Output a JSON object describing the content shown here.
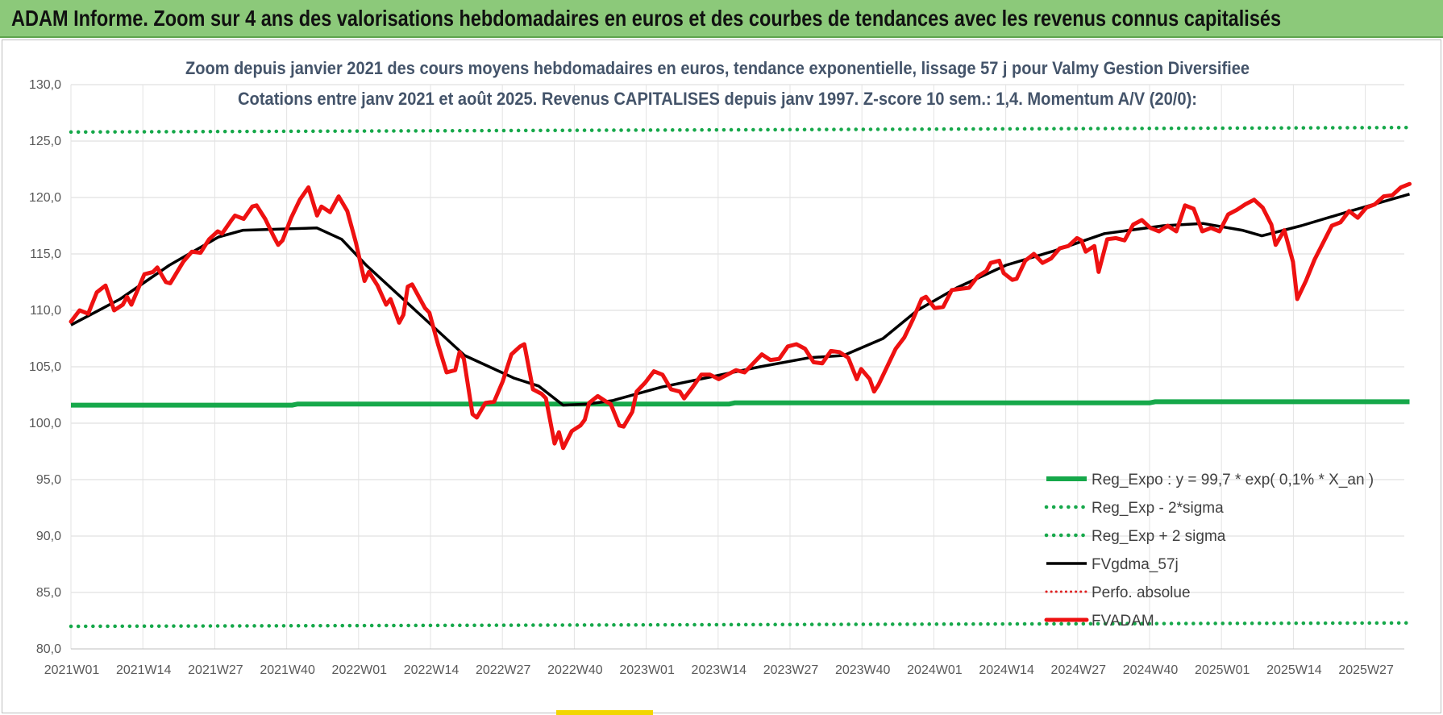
{
  "banner": {
    "title": "ADAM Informe. Zoom sur 4 ans des valorisations hebdomadaires en euros et des courbes de tendances avec les revenus connus capitalisés"
  },
  "colors": {
    "banner_bg": "#8cc97a",
    "regression": "#16a84a",
    "bands": "#16a84a",
    "moving_average": "#000000",
    "price": "#ee1111",
    "perfo": "#e02020"
  },
  "chart_data": {
    "type": "line",
    "title": "Zoom depuis janvier 2021 des cours moyens hebdomadaires en euros, tendance exponentielle, lissage 57 j pour Valmy Gestion Diversifiee",
    "subtitle": "Cotations entre janv 2021 et août 2025. Revenus CAPITALISES depuis janv 1997. Z-score 10 sem.: 1,4. Momentum A/V (20/0):",
    "x_tick_labels": [
      "2021W01",
      "2021W14",
      "2021W27",
      "2021W40",
      "2022W01",
      "2022W14",
      "2022W27",
      "2022W40",
      "2023W01",
      "2023W14",
      "2023W27",
      "2023W40",
      "2024W01",
      "2024W14",
      "2024W27",
      "2024W40",
      "2025W01",
      "2025W14",
      "2025W27"
    ],
    "y_tick_labels": [
      "80,0",
      "85,0",
      "90,0",
      "95,0",
      "100,0",
      "105,0",
      "110,0",
      "115,0",
      "120,0",
      "125,0",
      "130,0"
    ],
    "ylim": [
      80,
      130
    ],
    "grid": true,
    "legend_position": "bottom-right",
    "week_count": 243,
    "series": [
      {
        "name": "Reg_Expo : y = 99,7 * exp( 0,1% *  X_an )",
        "style": "solid-thick",
        "points": [
          [
            0,
            101.6
          ],
          [
            40,
            101.6
          ],
          [
            41,
            101.7
          ],
          [
            119,
            101.7
          ],
          [
            120,
            101.8
          ],
          [
            195,
            101.8
          ],
          [
            196,
            101.9
          ],
          [
            242,
            101.9
          ]
        ]
      },
      {
        "name": "Reg_Exp - 2*sigma",
        "style": "dotted",
        "points": [
          [
            0,
            82.0
          ],
          [
            242,
            82.3
          ]
        ]
      },
      {
        "name": "Reg_Exp + 2 sigma",
        "style": "dotted",
        "points": [
          [
            0,
            125.8
          ],
          [
            242,
            126.2
          ]
        ]
      },
      {
        "name": "FVgdma_57j",
        "style": "solid",
        "points": [
          [
            0,
            108.7
          ],
          [
            10,
            111.0
          ],
          [
            20,
            114.0
          ],
          [
            30,
            116.5
          ],
          [
            35,
            117.1
          ],
          [
            50,
            117.3
          ],
          [
            55,
            116.3
          ],
          [
            60,
            114.0
          ],
          [
            70,
            110.0
          ],
          [
            80,
            106.0
          ],
          [
            90,
            104.0
          ],
          [
            95,
            103.3
          ],
          [
            100,
            101.6
          ],
          [
            105,
            101.7
          ],
          [
            110,
            102.0
          ],
          [
            120,
            103.2
          ],
          [
            130,
            104.1
          ],
          [
            140,
            105.0
          ],
          [
            150,
            105.8
          ],
          [
            157,
            106.0
          ],
          [
            165,
            107.5
          ],
          [
            172,
            110.0
          ],
          [
            180,
            112.0
          ],
          [
            190,
            114.0
          ],
          [
            200,
            115.3
          ],
          [
            210,
            116.8
          ],
          [
            222,
            117.5
          ],
          [
            230,
            117.7
          ],
          [
            238,
            117.1
          ],
          [
            242,
            116.6
          ],
          [
            250,
            117.5
          ],
          [
            260,
            118.8
          ],
          [
            272,
            120.3
          ]
        ]
      },
      {
        "name": "Perfo. absolue",
        "style": "dotted",
        "points": []
      },
      {
        "name": "FVADAM",
        "style": "solid-thick",
        "points": [
          [
            0,
            109.0
          ],
          [
            2,
            110.0
          ],
          [
            4,
            109.7
          ],
          [
            6,
            111.6
          ],
          [
            8,
            112.2
          ],
          [
            10,
            110.0
          ],
          [
            12,
            110.5
          ],
          [
            13,
            111.2
          ],
          [
            14,
            110.5
          ],
          [
            17,
            113.2
          ],
          [
            19,
            113.4
          ],
          [
            20,
            113.8
          ],
          [
            22,
            112.5
          ],
          [
            23,
            112.4
          ],
          [
            26,
            114.3
          ],
          [
            28,
            115.2
          ],
          [
            30,
            115.1
          ],
          [
            32,
            116.3
          ],
          [
            34,
            117.0
          ],
          [
            35,
            116.8
          ],
          [
            37,
            117.9
          ],
          [
            38,
            118.4
          ],
          [
            40,
            118.1
          ],
          [
            42,
            119.2
          ],
          [
            43,
            119.3
          ],
          [
            45,
            118.1
          ],
          [
            47,
            116.5
          ],
          [
            48,
            115.8
          ],
          [
            49,
            116.2
          ],
          [
            51,
            118.2
          ],
          [
            53,
            119.8
          ],
          [
            55,
            120.9
          ],
          [
            57,
            118.4
          ],
          [
            58,
            119.2
          ],
          [
            60,
            118.7
          ],
          [
            62,
            120.1
          ],
          [
            64,
            118.8
          ],
          [
            66,
            116.0
          ],
          [
            68,
            112.6
          ],
          [
            69,
            113.4
          ],
          [
            71,
            112.2
          ],
          [
            73,
            110.5
          ],
          [
            74,
            111.0
          ],
          [
            76,
            108.9
          ],
          [
            77,
            109.6
          ],
          [
            78,
            112.1
          ],
          [
            79,
            112.3
          ],
          [
            80,
            111.6
          ],
          [
            82,
            110.2
          ],
          [
            83,
            109.8
          ],
          [
            85,
            107.0
          ],
          [
            87,
            104.5
          ],
          [
            89,
            104.7
          ],
          [
            90,
            106.3
          ],
          [
            91,
            105.7
          ],
          [
            93,
            100.8
          ],
          [
            94,
            100.5
          ],
          [
            96,
            101.8
          ],
          [
            98,
            101.9
          ],
          [
            100,
            103.7
          ],
          [
            102,
            106.1
          ],
          [
            104,
            106.8
          ],
          [
            105,
            107.0
          ],
          [
            107,
            103.0
          ],
          [
            109,
            102.6
          ],
          [
            110,
            102.2
          ],
          [
            112,
            98.2
          ],
          [
            113,
            99.2
          ],
          [
            114,
            97.8
          ],
          [
            116,
            99.3
          ],
          [
            118,
            99.8
          ],
          [
            119,
            100.3
          ],
          [
            120,
            101.8
          ],
          [
            122,
            102.4
          ],
          [
            124,
            101.9
          ],
          [
            125,
            101.7
          ],
          [
            127,
            99.8
          ],
          [
            128,
            99.7
          ],
          [
            130,
            101.0
          ],
          [
            131,
            102.8
          ],
          [
            133,
            103.6
          ],
          [
            135,
            104.6
          ],
          [
            137,
            104.3
          ],
          [
            139,
            103.0
          ],
          [
            141,
            102.8
          ],
          [
            142,
            102.2
          ],
          [
            144,
            103.2
          ],
          [
            146,
            104.3
          ],
          [
            148,
            104.3
          ],
          [
            150,
            103.9
          ],
          [
            152,
            104.3
          ],
          [
            154,
            104.7
          ],
          [
            156,
            104.5
          ],
          [
            158,
            105.3
          ],
          [
            160,
            106.1
          ],
          [
            162,
            105.6
          ],
          [
            164,
            105.7
          ],
          [
            166,
            106.8
          ],
          [
            168,
            107.0
          ],
          [
            170,
            106.6
          ],
          [
            172,
            105.4
          ],
          [
            174,
            105.3
          ],
          [
            176,
            106.4
          ],
          [
            178,
            106.3
          ],
          [
            180,
            105.8
          ],
          [
            182,
            103.9
          ],
          [
            183,
            104.8
          ],
          [
            185,
            103.9
          ],
          [
            186,
            102.8
          ],
          [
            187,
            103.4
          ],
          [
            189,
            105.0
          ],
          [
            191,
            106.6
          ],
          [
            193,
            107.6
          ],
          [
            195,
            109.2
          ],
          [
            197,
            111.0
          ],
          [
            198,
            111.2
          ],
          [
            200,
            110.2
          ],
          [
            202,
            110.3
          ],
          [
            204,
            111.8
          ],
          [
            206,
            111.9
          ],
          [
            208,
            112.0
          ],
          [
            210,
            113.0
          ],
          [
            212,
            113.5
          ],
          [
            213,
            114.2
          ],
          [
            215,
            114.4
          ],
          [
            216,
            113.3
          ],
          [
            218,
            112.7
          ],
          [
            219,
            112.8
          ],
          [
            221,
            114.4
          ],
          [
            223,
            115.0
          ],
          [
            225,
            114.2
          ],
          [
            227,
            114.6
          ],
          [
            229,
            115.5
          ],
          [
            231,
            115.7
          ],
          [
            233,
            116.4
          ],
          [
            234,
            116.2
          ],
          [
            235,
            115.2
          ],
          [
            237,
            115.7
          ],
          [
            238,
            113.4
          ],
          [
            240,
            116.3
          ],
          [
            242,
            116.4
          ],
          [
            244,
            116.2
          ],
          [
            246,
            117.6
          ],
          [
            248,
            118.0
          ],
          [
            250,
            117.3
          ],
          [
            252,
            117.0
          ],
          [
            254,
            117.5
          ],
          [
            256,
            117.0
          ],
          [
            258,
            119.3
          ],
          [
            260,
            119.0
          ],
          [
            262,
            117.0
          ],
          [
            264,
            117.3
          ],
          [
            266,
            117.0
          ],
          [
            268,
            118.5
          ],
          [
            270,
            118.9
          ],
          [
            272,
            119.4
          ],
          [
            274,
            119.8
          ],
          [
            276,
            119.1
          ],
          [
            278,
            117.6
          ],
          [
            279,
            115.8
          ],
          [
            281,
            117.1
          ],
          [
            283,
            114.3
          ],
          [
            284,
            111.0
          ],
          [
            286,
            112.6
          ],
          [
            288,
            114.5
          ],
          [
            290,
            116.0
          ],
          [
            292,
            117.5
          ],
          [
            294,
            117.8
          ],
          [
            296,
            118.8
          ],
          [
            298,
            118.2
          ],
          [
            300,
            119.1
          ],
          [
            302,
            119.4
          ],
          [
            304,
            120.1
          ],
          [
            306,
            120.2
          ],
          [
            308,
            120.9
          ],
          [
            310,
            121.2
          ]
        ]
      }
    ]
  }
}
